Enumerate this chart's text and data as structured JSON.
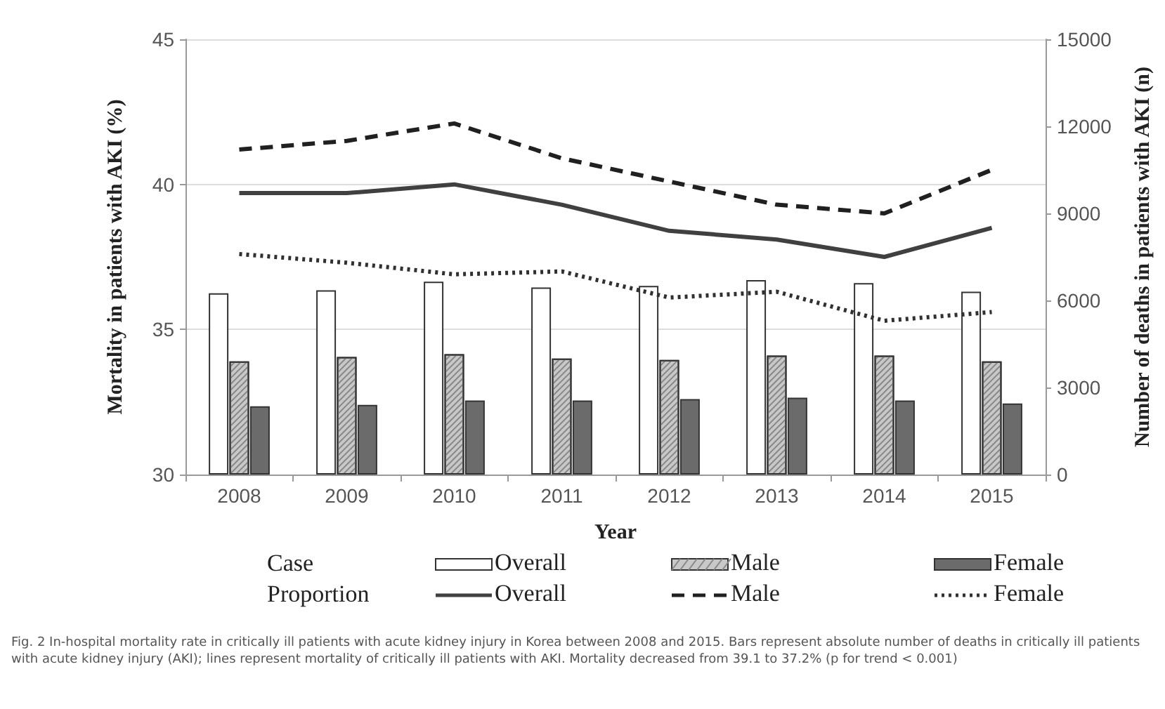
{
  "chart_data": {
    "type": "bar",
    "xlabel": "Year",
    "ylabel": "Mortality in patients with AKI (%)",
    "y2label": "Number of deaths in patients with AKI (n)",
    "legend_title": "Case Proportion",
    "categories": [
      "2008",
      "2009",
      "2010",
      "2011",
      "2012",
      "2013",
      "2014",
      "2015"
    ],
    "series": [
      {
        "name": "Overall",
        "axis": "y2",
        "color": "#ffffff",
        "values": [
          6250,
          6350,
          6650,
          6450,
          6500,
          6700,
          6600,
          6300
        ]
      },
      {
        "name": "Male",
        "axis": "y2",
        "color": "#c8c8c8",
        "values": [
          3900,
          4050,
          4150,
          4000,
          3950,
          4100,
          4100,
          3900
        ]
      },
      {
        "name": "Female",
        "axis": "y2",
        "color": "#6b6b6b",
        "values": [
          2350,
          2400,
          2550,
          2550,
          2600,
          2650,
          2550,
          2450
        ]
      },
      {
        "name": "Overall",
        "type": "line",
        "axis": "y",
        "color": "#404040",
        "line_style": "solid",
        "values": [
          39.7,
          39.7,
          40.0,
          39.3,
          38.4,
          38.1,
          37.5,
          38.5
        ]
      },
      {
        "name": "Male",
        "type": "line",
        "axis": "y",
        "color": "#202020",
        "line_style": "dashed",
        "values": [
          41.2,
          41.5,
          42.1,
          40.9,
          40.1,
          39.3,
          39.0,
          40.5
        ]
      },
      {
        "name": "Female",
        "type": "line",
        "axis": "y",
        "color": "#303030",
        "line_style": "dotted",
        "values": [
          37.6,
          37.3,
          36.9,
          37.0,
          36.1,
          36.3,
          35.3,
          35.6
        ]
      }
    ],
    "ylim": [
      30,
      45
    ],
    "yticks": [
      30,
      35,
      40,
      45
    ],
    "y2lim": [
      0,
      15000
    ],
    "y2ticks": [
      0,
      3000,
      6000,
      9000,
      12000,
      15000
    ],
    "grid": "y",
    "legend": "bottom",
    "marker": "none",
    "annotations": [
      "Fig. 2 In-hospital mortality rate in critically ill patients with acute kidney injury in Korea between 2008 and 2015. Bars represent absolute number of deaths in critically ill patients with acute kidney injury (AKI); lines represent mortality of critically ill patients with AKI. Mortality decreased from 39.1 to 37.2% (p for trend < 0.001)"
    ]
  }
}
